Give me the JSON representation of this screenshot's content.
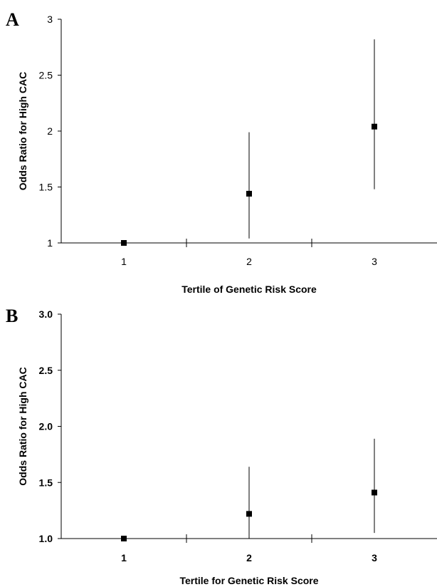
{
  "chart_data": [
    {
      "type": "scatter",
      "panel": "A",
      "xlabel": "Tertile of Genetic Risk Score",
      "ylabel": "Odds Ratio for High CAC",
      "categories": [
        "1",
        "2",
        "3"
      ],
      "y_ticks": [
        "1",
        "1.5",
        "2",
        "2.5",
        "3"
      ],
      "ylim": [
        1,
        3
      ],
      "values": [
        1.0,
        1.44,
        2.04
      ],
      "ci_lower": [
        1.0,
        1.04,
        1.48
      ],
      "ci_upper": [
        1.0,
        1.99,
        2.82
      ],
      "grid": false
    },
    {
      "type": "scatter",
      "panel": "B",
      "xlabel": "Tertile for Genetic Risk Score",
      "ylabel": "Odds Ratio for High CAC",
      "categories": [
        "1",
        "2",
        "3"
      ],
      "y_ticks": [
        "1.0",
        "1.5",
        "2.0",
        "2.5",
        "3.0"
      ],
      "ylim": [
        1,
        3
      ],
      "values": [
        1.0,
        1.22,
        1.41
      ],
      "ci_lower": [
        1.0,
        1.0,
        1.05
      ],
      "ci_upper": [
        1.0,
        1.64,
        1.89
      ],
      "grid": false
    }
  ]
}
